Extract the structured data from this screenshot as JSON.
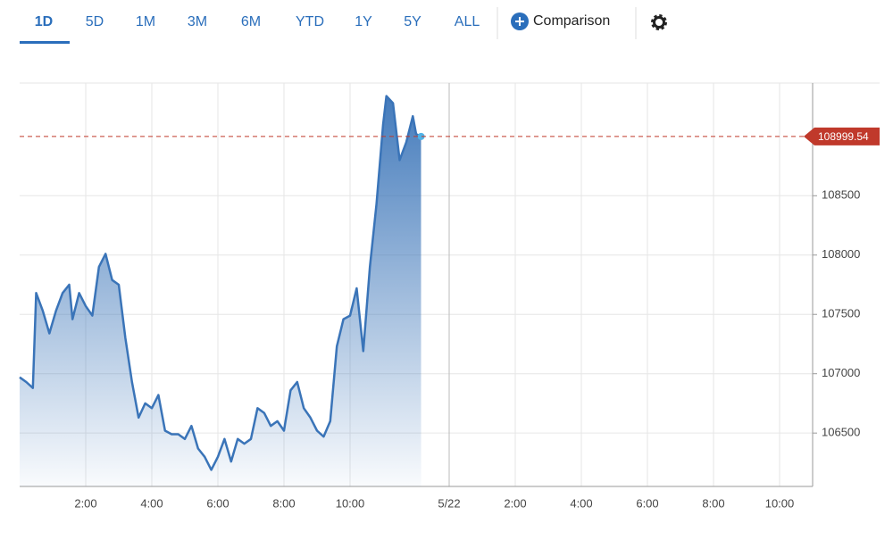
{
  "toolbar": {
    "ranges": [
      "1D",
      "5D",
      "1M",
      "3M",
      "6M",
      "YTD",
      "1Y",
      "5Y",
      "ALL"
    ],
    "selected_range": 0,
    "comparison": "Comparison"
  },
  "chart_data": {
    "type": "area",
    "color": "#3a74b8",
    "x": [
      0,
      0.2,
      0.4,
      0.5,
      0.7,
      0.9,
      1.1,
      1.3,
      1.5,
      1.6,
      1.8,
      2.0,
      2.2,
      2.4,
      2.6,
      2.8,
      3.0,
      3.2,
      3.4,
      3.6,
      3.8,
      4.0,
      4.2,
      4.4,
      4.6,
      4.8,
      5.0,
      5.2,
      5.4,
      5.6,
      5.8,
      6.0,
      6.2,
      6.4,
      6.6,
      6.8,
      7.0,
      7.2,
      7.4,
      7.6,
      7.8,
      8.0,
      8.2,
      8.4,
      8.6,
      8.8,
      9.0,
      9.2,
      9.4,
      9.6,
      9.8,
      10.0,
      10.2,
      10.4,
      10.6,
      10.8,
      11.0,
      11.1,
      11.3,
      11.5,
      11.7,
      11.9,
      12.0,
      12.15
    ],
    "values": [
      106970,
      106930,
      106880,
      107680,
      107530,
      107340,
      107530,
      107680,
      107750,
      107460,
      107680,
      107570,
      107490,
      107900,
      108010,
      107790,
      107750,
      107300,
      106930,
      106630,
      106750,
      106710,
      106820,
      106520,
      106490,
      106490,
      106450,
      106560,
      106370,
      106300,
      106190,
      106300,
      106450,
      106260,
      106450,
      106410,
      106450,
      106710,
      106670,
      106560,
      106600,
      106520,
      106860,
      106930,
      106710,
      106630,
      106520,
      106470,
      106600,
      107230,
      107460,
      107490,
      107720,
      107190,
      107900,
      108430,
      109100,
      109340,
      109280,
      108800,
      108950,
      109170,
      109020,
      108999.54
    ],
    "last_price": 108999.54,
    "last_price_color": "#c0392b",
    "xlim": [
      0,
      24
    ],
    "xticks": [
      {
        "value": 2,
        "label": "2:00"
      },
      {
        "value": 4,
        "label": "4:00"
      },
      {
        "value": 6,
        "label": "6:00"
      },
      {
        "value": 8,
        "label": "8:00"
      },
      {
        "value": 10,
        "label": "10:00"
      },
      {
        "value": 13,
        "label": "5/22"
      },
      {
        "value": 15,
        "label": "2:00"
      },
      {
        "value": 17,
        "label": "4:00"
      },
      {
        "value": 19,
        "label": "6:00"
      },
      {
        "value": 21,
        "label": "8:00"
      },
      {
        "value": 23,
        "label": "10:00"
      }
    ],
    "ylim": [
      106050,
      109450
    ],
    "yticks": [
      106500,
      107000,
      107500,
      108000,
      108500
    ],
    "grid": true
  }
}
